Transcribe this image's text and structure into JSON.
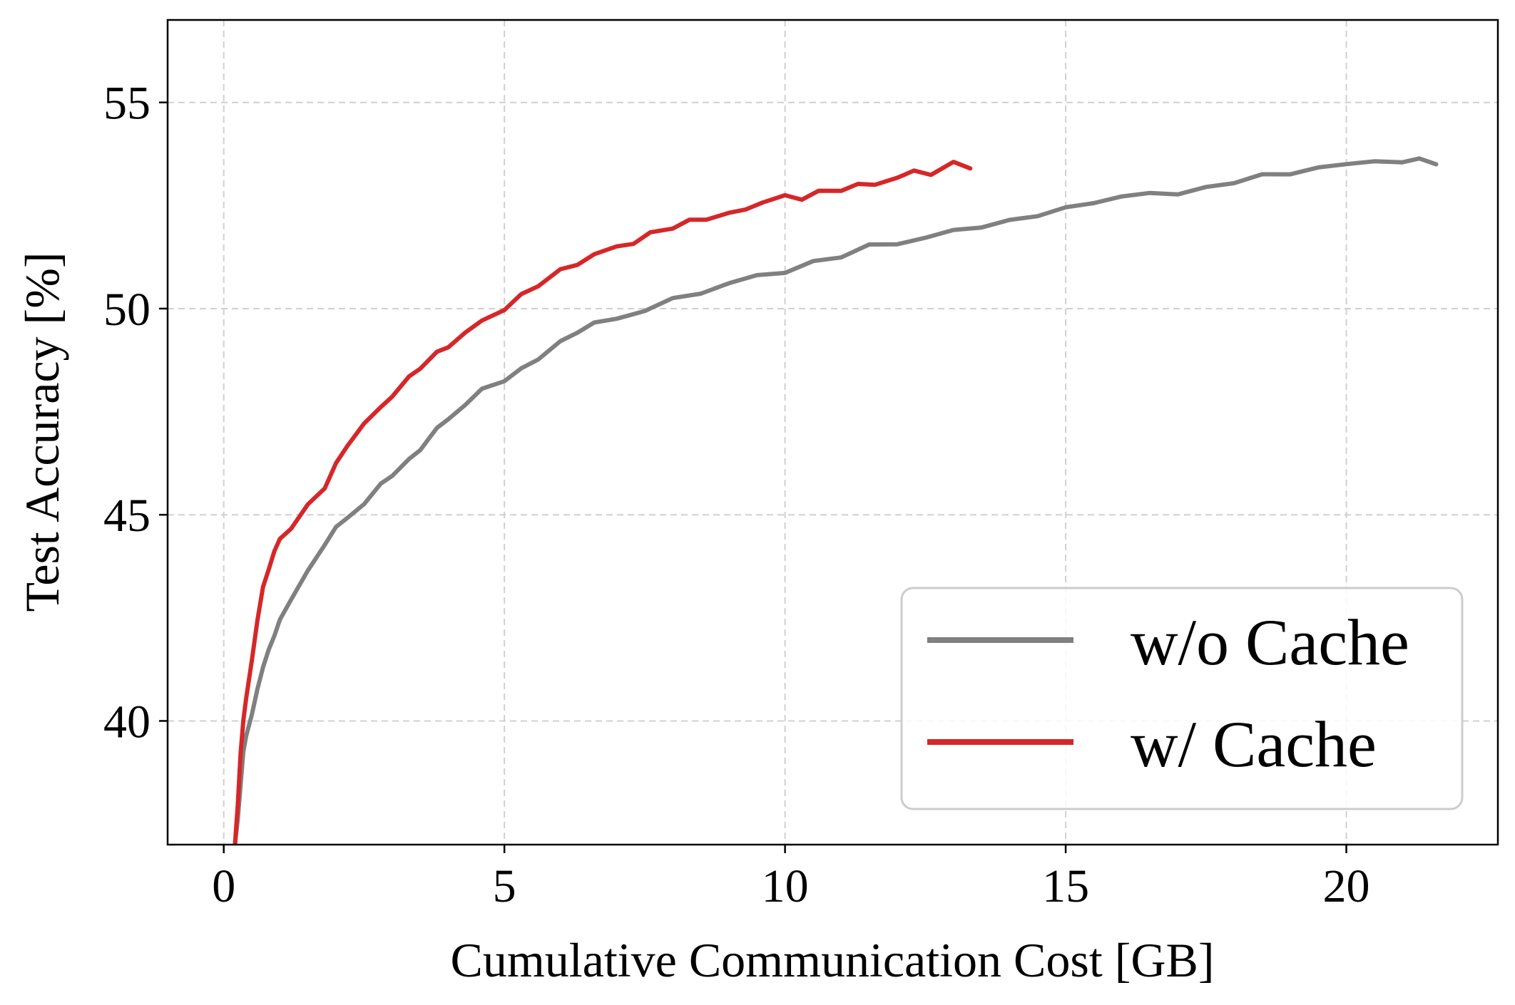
{
  "chart_data": {
    "type": "line",
    "title": "",
    "xlabel": "Cumulative Communication Cost [GB]",
    "ylabel": "Test Accuracy [%]",
    "xlim": [
      -1.0,
      22.7
    ],
    "ylim": [
      37.0,
      57.0
    ],
    "xticks": [
      0,
      5,
      10,
      15,
      20
    ],
    "yticks": [
      40,
      45,
      50,
      55
    ],
    "xtick_labels": [
      "0",
      "5",
      "10",
      "15",
      "20"
    ],
    "ytick_labels": [
      "40",
      "45",
      "50",
      "55"
    ],
    "grid": true,
    "legend_position": "bottom-right",
    "series": [
      {
        "name": "w/o Cache",
        "color": "#808080",
        "x": [
          0.2,
          0.25,
          0.3,
          0.35,
          0.4,
          0.5,
          0.6,
          0.7,
          0.8,
          0.9,
          1.0,
          1.2,
          1.5,
          1.8,
          2.0,
          2.2,
          2.5,
          2.8,
          3.0,
          3.3,
          3.5,
          3.8,
          4.0,
          4.3,
          4.6,
          5.0,
          5.3,
          5.6,
          6.0,
          6.3,
          6.6,
          7.0,
          7.5,
          8.0,
          8.5,
          9.0,
          9.5,
          10.0,
          10.5,
          11.0,
          11.5,
          12.0,
          12.5,
          13.0,
          13.5,
          14.0,
          14.5,
          15.0,
          15.5,
          16.0,
          16.5,
          17.0,
          17.5,
          18.0,
          18.5,
          19.0,
          19.5,
          20.0,
          20.5,
          21.0,
          21.3,
          21.6
        ],
        "y": [
          37.0,
          37.6,
          38.5,
          39.2,
          39.7,
          40.1,
          40.8,
          41.3,
          41.7,
          42.1,
          42.4,
          43.0,
          43.6,
          44.3,
          44.7,
          44.9,
          45.3,
          45.7,
          46.0,
          46.3,
          46.6,
          47.1,
          47.3,
          47.7,
          48.0,
          48.3,
          48.5,
          48.8,
          49.2,
          49.4,
          49.7,
          49.7,
          50.0,
          50.2,
          50.4,
          50.6,
          50.8,
          50.9,
          51.1,
          51.3,
          51.5,
          51.6,
          51.7,
          51.9,
          52.0,
          52.1,
          52.3,
          52.4,
          52.6,
          52.7,
          52.8,
          52.8,
          52.9,
          53.1,
          53.2,
          53.3,
          53.4,
          53.5,
          53.6,
          53.5,
          53.7,
          53.5
        ]
      },
      {
        "name": "w/ Cache",
        "color": "#d62728",
        "x": [
          0.2,
          0.25,
          0.3,
          0.35,
          0.4,
          0.5,
          0.6,
          0.7,
          0.8,
          0.9,
          1.0,
          1.2,
          1.5,
          1.8,
          2.0,
          2.2,
          2.5,
          2.8,
          3.0,
          3.3,
          3.5,
          3.8,
          4.0,
          4.3,
          4.6,
          5.0,
          5.3,
          5.6,
          6.0,
          6.3,
          6.6,
          7.0,
          7.3,
          7.6,
          8.0,
          8.3,
          8.6,
          9.0,
          9.3,
          9.6,
          10.0,
          10.3,
          10.6,
          11.0,
          11.3,
          11.6,
          12.0,
          12.3,
          12.6,
          13.0,
          13.3
        ],
        "y": [
          37.0,
          38.0,
          39.2,
          40.0,
          40.6,
          41.4,
          42.5,
          43.2,
          43.7,
          44.1,
          44.4,
          44.7,
          45.2,
          45.7,
          46.2,
          46.7,
          47.2,
          47.6,
          47.9,
          48.3,
          48.6,
          48.9,
          49.1,
          49.4,
          49.7,
          50.0,
          50.3,
          50.6,
          50.9,
          51.1,
          51.3,
          51.5,
          51.6,
          51.8,
          52.0,
          52.1,
          52.2,
          52.3,
          52.4,
          52.6,
          52.7,
          52.7,
          52.8,
          52.9,
          53.0,
          53.0,
          53.2,
          53.3,
          53.3,
          53.5,
          53.4
        ]
      }
    ]
  }
}
